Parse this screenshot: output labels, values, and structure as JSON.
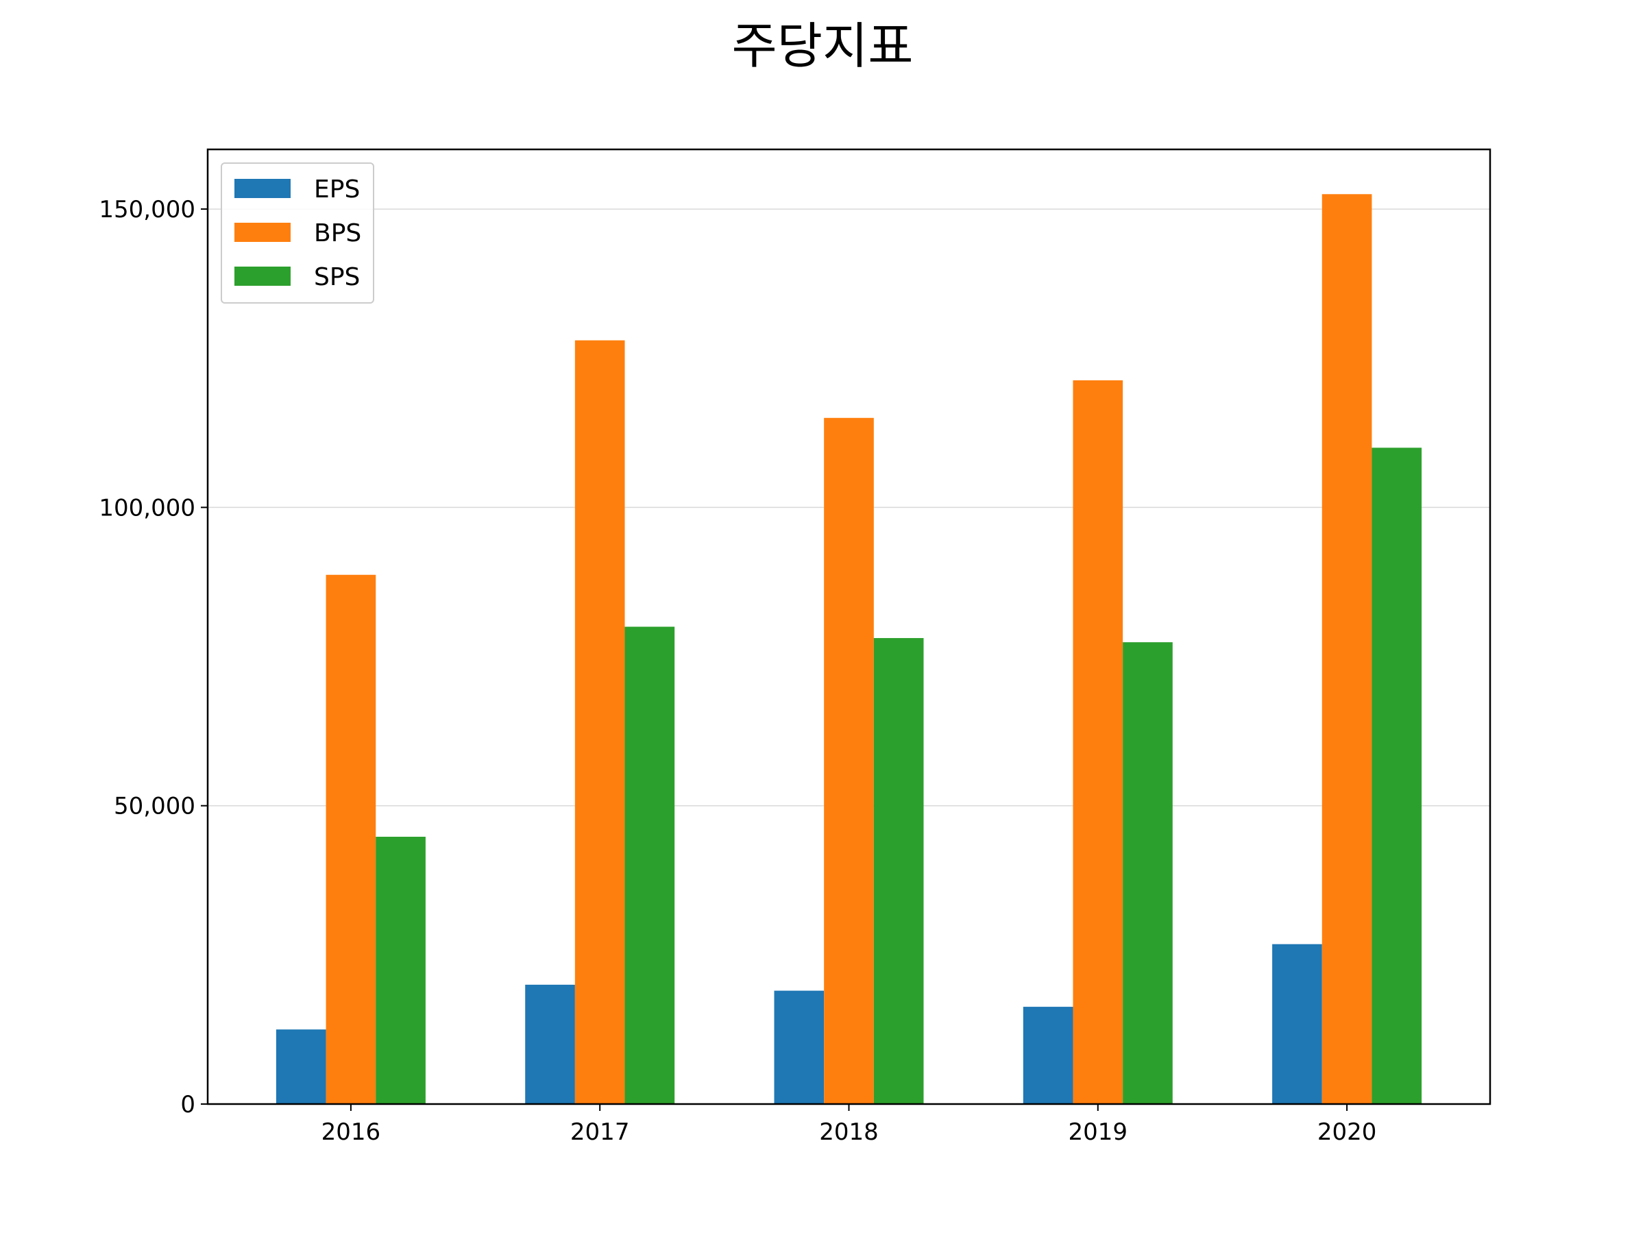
{
  "chart_data": {
    "type": "bar",
    "title": "주당지표",
    "xlabel": "",
    "ylabel": "",
    "categories": [
      "2016",
      "2017",
      "2018",
      "2019",
      "2020"
    ],
    "series": [
      {
        "name": "EPS",
        "color": "#1f77b4",
        "values": [
          12500,
          20000,
          19000,
          16300,
          26800
        ]
      },
      {
        "name": "BPS",
        "color": "#ff7f0e",
        "values": [
          88700,
          128000,
          115000,
          121300,
          152500
        ]
      },
      {
        "name": "SPS",
        "color": "#2ca02c",
        "values": [
          44800,
          80000,
          78100,
          77400,
          110000
        ]
      }
    ],
    "ylim": [
      0,
      160000
    ],
    "yticks": [
      0,
      50000,
      100000,
      150000
    ],
    "ytick_labels": [
      "0",
      "50,000",
      "100,000",
      "150,000"
    ],
    "grid": "y",
    "legend_position": "top-left"
  }
}
